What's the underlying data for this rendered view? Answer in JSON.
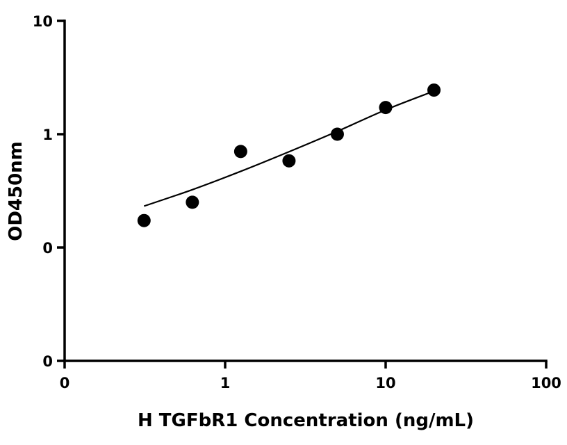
{
  "chart_data": {
    "type": "scatter",
    "title": "",
    "xlabel": "H TGFbR1 Concentration (ng/mL)",
    "ylabel": "OD450nm",
    "x_scale": "log",
    "y_scale": "log",
    "xlim": [
      0.1,
      100
    ],
    "ylim": [
      0.01,
      10
    ],
    "x_ticks": [
      {
        "value": 0.1,
        "label": "0"
      },
      {
        "value": 1,
        "label": "1"
      },
      {
        "value": 10,
        "label": "10"
      },
      {
        "value": 100,
        "label": "100"
      }
    ],
    "y_ticks": [
      {
        "value": 0.01,
        "label": "0"
      },
      {
        "value": 0.1,
        "label": "0"
      },
      {
        "value": 1,
        "label": "1"
      },
      {
        "value": 10,
        "label": "10"
      }
    ],
    "grid": false,
    "legend": "none",
    "series": [
      {
        "values": [
          {
            "x": 0.3125,
            "y": 0.173
          },
          {
            "x": 0.625,
            "y": 0.251
          },
          {
            "x": 1.25,
            "y": 0.704
          },
          {
            "x": 2.5,
            "y": 0.582
          },
          {
            "x": 5,
            "y": 1.0
          },
          {
            "x": 10,
            "y": 1.72
          },
          {
            "x": 20,
            "y": 2.45
          }
        ],
        "color": "#000000"
      }
    ],
    "fit_curve": {
      "type": "4PL",
      "color": "#000000",
      "x_range": [
        0.3125,
        20
      ],
      "points": [
        {
          "x": 0.3125,
          "y": 0.232
        },
        {
          "x": 0.625,
          "y": 0.324
        },
        {
          "x": 1.25,
          "y": 0.47
        },
        {
          "x": 2.5,
          "y": 0.7
        },
        {
          "x": 5,
          "y": 1.06
        },
        {
          "x": 10,
          "y": 1.64
        },
        {
          "x": 20,
          "y": 2.4
        }
      ]
    }
  }
}
